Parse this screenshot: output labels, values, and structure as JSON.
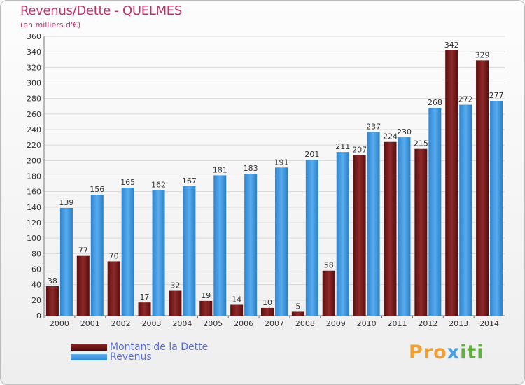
{
  "title": "Revenus/Dette - QUELMES",
  "subtitle": "(en milliers d'€)",
  "chart_data": {
    "type": "bar",
    "title": "Revenus/Dette - QUELMES",
    "subtitle": "(en milliers d'€)",
    "xlabel": "",
    "ylabel": "",
    "ylim": [
      0,
      360
    ],
    "ytick_step": 20,
    "grid": true,
    "categories": [
      "2000",
      "2001",
      "2002",
      "2003",
      "2004",
      "2005",
      "2006",
      "2007",
      "2008",
      "2009",
      "2010",
      "2011",
      "2012",
      "2013",
      "2014"
    ],
    "series": [
      {
        "name": "Montant de la Dette",
        "color": "#7a1c1c",
        "values": [
          38,
          77,
          70,
          17,
          32,
          19,
          14,
          10,
          5,
          58,
          207,
          224,
          215,
          342,
          329
        ]
      },
      {
        "name": "Revenus",
        "color": "#3d9be6",
        "values": [
          139,
          156,
          165,
          162,
          167,
          181,
          183,
          191,
          201,
          211,
          237,
          230,
          268,
          272,
          277
        ]
      }
    ],
    "value_labels": [
      [
        "38",
        "77",
        "70",
        "17",
        "32",
        "19",
        "14",
        "10",
        "5",
        "58",
        "207",
        "224",
        "215",
        "342",
        "329"
      ],
      [
        "139",
        "156",
        "165",
        "162",
        "167",
        "181",
        "183",
        "191",
        "201",
        "211",
        "237",
        "230",
        "268",
        "272",
        "277"
      ]
    ],
    "legend_position": "bottom-left"
  },
  "legend": [
    {
      "label": "Montant de la Dette",
      "color": "#6b1414"
    },
    {
      "label": "Revenus",
      "color": "#3d9be6"
    }
  ],
  "brand": {
    "p1": "Pro",
    "p2": "x",
    "p3": "iti"
  }
}
